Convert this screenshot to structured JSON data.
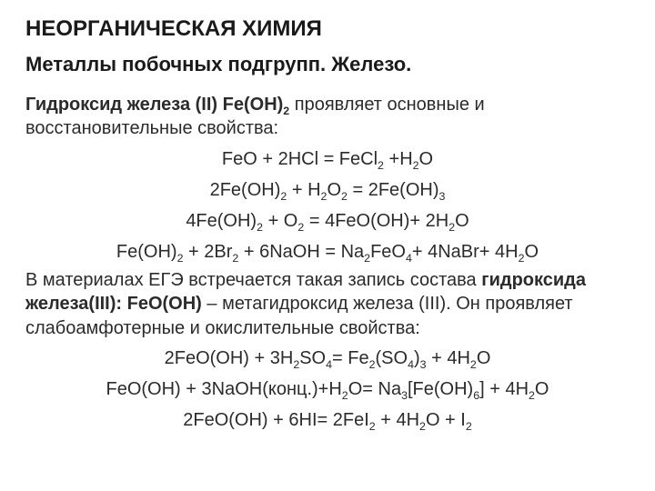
{
  "title": "НЕОРГАНИЧЕСКАЯ ХИМИЯ",
  "subtitle": "Металлы побочных подгрупп. Железо.",
  "para1_b": "Гидроксид железа (II) Fe(OH)",
  "para1_sub": "2",
  "para1_rest": " проявляет основные и восстановительные свойства:",
  "eq1": {
    "t": [
      "FeO + 2HCl = FeCl",
      " +H",
      "O"
    ],
    "s": [
      "2",
      "2"
    ]
  },
  "eq2": {
    "t": [
      "2Fe(OH)",
      " + H",
      "O",
      " = 2Fe(OH)",
      ""
    ],
    "s": [
      "2",
      "2",
      "2",
      "3"
    ]
  },
  "eq3": {
    "t": [
      "4Fe(OH)",
      " + O",
      " = 4FeO(OH)+ 2H",
      "O"
    ],
    "s": [
      "2",
      "2",
      "2"
    ]
  },
  "eq4": {
    "t": [
      "Fe(OH)",
      " + 2Br",
      " + 6NaOH = Na",
      "FeO",
      "+ 4NaBr+ 4H",
      "O"
    ],
    "s": [
      "2",
      "2",
      "2",
      "4",
      "2"
    ]
  },
  "para2_a": "В материалах ЕГЭ встречается такая запись состава ",
  "para2_b": "гидроксида железа(III): FeO(OH)",
  "para2_c": " – метагидроксид железа (III). Он проявляет слабоамфотерные и окислительные свойства:",
  "eq5": {
    "t": [
      "2FeO(OH) + 3H",
      "SO",
      "= Fe",
      "(SO",
      ")",
      " + 4H",
      "O"
    ],
    "s": [
      "2",
      "4",
      "2",
      "4",
      "3",
      "2"
    ]
  },
  "eq6": {
    "t": [
      "FeO(OH) +  3NaOH(конц.)+H",
      "O= Na",
      "[Fe(OH)",
      "] + 4H",
      "O"
    ],
    "s": [
      "2",
      "3",
      "6",
      "2"
    ]
  },
  "eq7": {
    "t": [
      "2FeO(OH) + 6HI= 2FeI",
      " + 4H",
      "O + I",
      ""
    ],
    "s": [
      "2",
      "2",
      "2"
    ]
  }
}
